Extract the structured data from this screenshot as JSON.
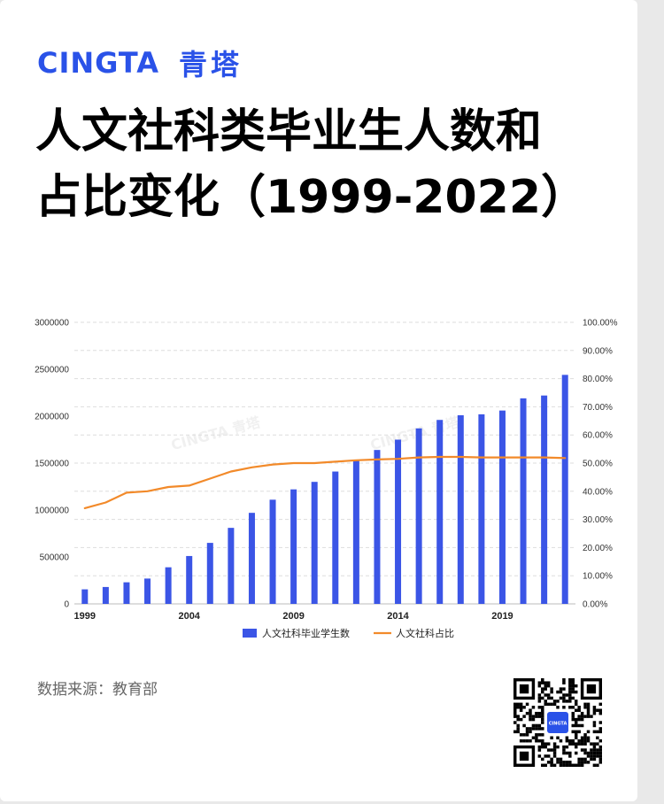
{
  "brand": {
    "en": "CINGTA",
    "cn": "青塔",
    "watermark": "CINGTA  青塔",
    "qr_logo": "CINGTA"
  },
  "title": {
    "line1": "人文社科类毕业生人数和",
    "line2": "占比变化（1999-2022）"
  },
  "source": "数据来源：教育部",
  "colors": {
    "brand": "#2a52e8",
    "bar": "#3b55e6",
    "line": "#f28a2a"
  },
  "chart_data": {
    "type": "bar",
    "categories": [
      "1999",
      "2000",
      "2001",
      "2002",
      "2003",
      "2004",
      "2005",
      "2006",
      "2007",
      "2008",
      "2009",
      "2010",
      "2011",
      "2012",
      "2013",
      "2014",
      "2015",
      "2016",
      "2017",
      "2018",
      "2019",
      "2020",
      "2021",
      "2022"
    ],
    "x_tick_labels": [
      "1999",
      "2004",
      "2009",
      "2014",
      "2019"
    ],
    "ylim": [
      0,
      3000000
    ],
    "y_ticks": [
      "3000000",
      "2500000",
      "2000000",
      "1500000",
      "1000000",
      "500000",
      "0"
    ],
    "y2lim": [
      0,
      1.0
    ],
    "y2_ticks": [
      "100.00%",
      "90.00%",
      "80.00%",
      "70.00%",
      "60.00%",
      "50.00%",
      "40.00%",
      "30.00%",
      "20.00%",
      "10.00%",
      "0.00%"
    ],
    "grid": true,
    "legend_position": "bottom",
    "series": [
      {
        "name": "人文社科毕业学生数",
        "type": "bar",
        "axis": "left",
        "values": [
          155000,
          180000,
          230000,
          270000,
          390000,
          510000,
          650000,
          810000,
          970000,
          1110000,
          1220000,
          1300000,
          1410000,
          1530000,
          1640000,
          1750000,
          1870000,
          1960000,
          2010000,
          2020000,
          2060000,
          2190000,
          2220000,
          2440000
        ]
      },
      {
        "name": "人文社科占比",
        "type": "line",
        "axis": "right",
        "values": [
          0.34,
          0.36,
          0.395,
          0.4,
          0.415,
          0.42,
          0.445,
          0.47,
          0.485,
          0.495,
          0.5,
          0.5,
          0.505,
          0.51,
          0.513,
          0.515,
          0.52,
          0.522,
          0.522,
          0.52,
          0.52,
          0.52,
          0.52,
          0.518
        ]
      }
    ]
  }
}
